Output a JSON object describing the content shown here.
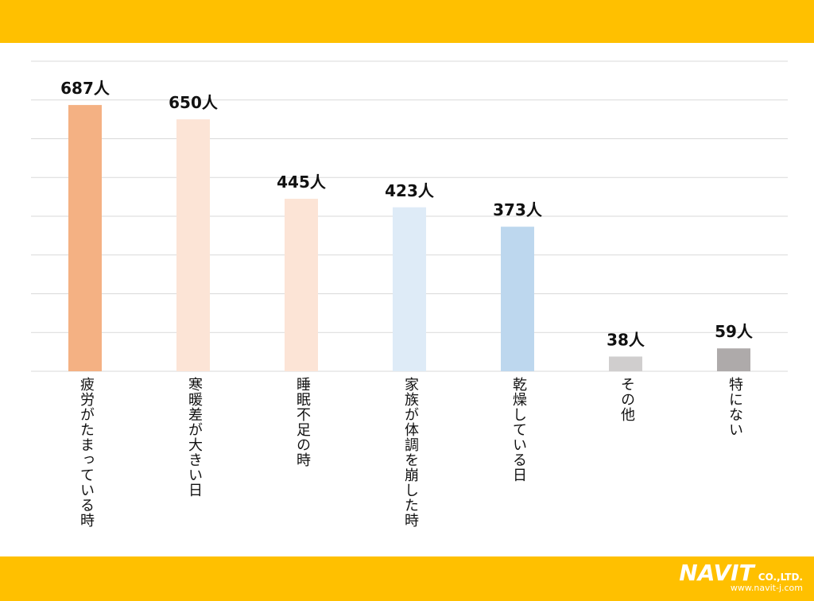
{
  "chart_data": {
    "type": "bar",
    "categories": [
      "疲労がたまっている時",
      "寒暖差が大きい日",
      "睡眠不足の時",
      "家族が体調を崩した時",
      "乾燥している日",
      "その他",
      "特にない"
    ],
    "values": [
      687,
      650,
      445,
      423,
      373,
      38,
      59
    ],
    "value_labels": [
      "687人",
      "650人",
      "445人",
      "423人",
      "373人",
      "38人",
      "59人"
    ],
    "colors": [
      "#f4b183",
      "#fce4d6",
      "#fce4d6",
      "#deebf7",
      "#bdd7ee",
      "#d0cece",
      "#aeaaaa"
    ],
    "ylim": [
      0,
      800
    ],
    "yticks": [
      0,
      100,
      200,
      300,
      400,
      500,
      600,
      700,
      800
    ],
    "grid": true
  },
  "footer": {
    "logo": "NAVIT",
    "company": "CO.,LTD.",
    "url": "www.navit-j.com"
  }
}
